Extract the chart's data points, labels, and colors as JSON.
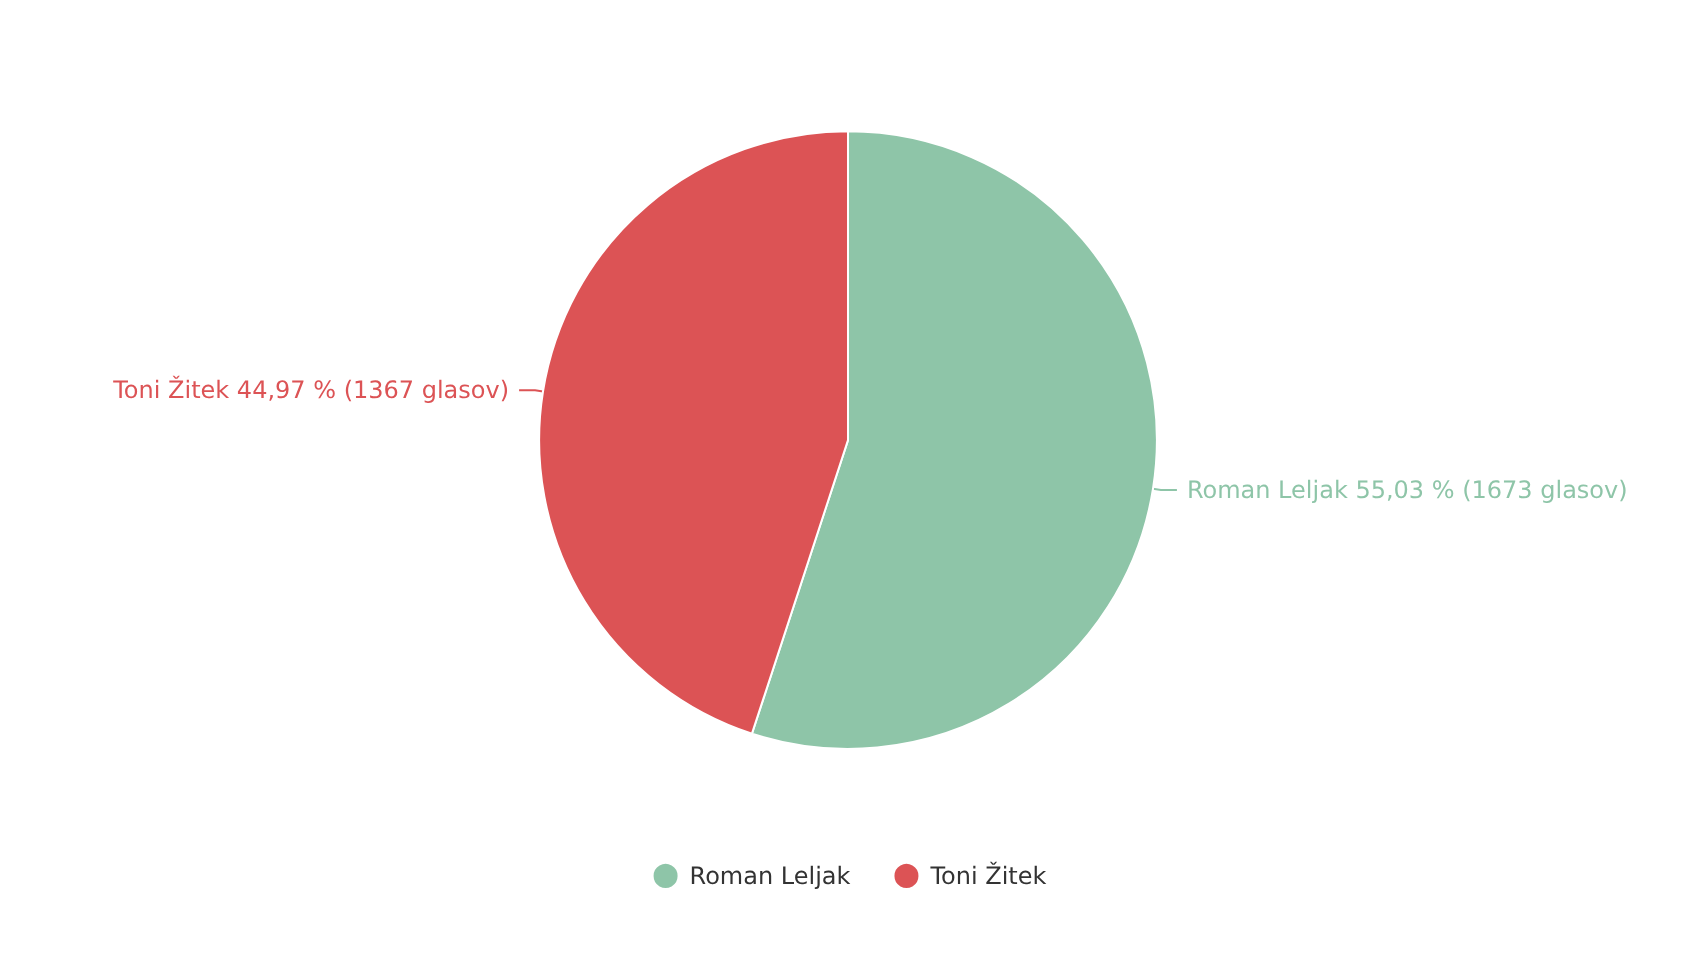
{
  "chart_data": {
    "type": "pie",
    "categories": [
      "Roman Leljak",
      "Toni Žitek"
    ],
    "values": [
      1673,
      1367
    ],
    "colors": [
      "#8ec5a8",
      "#dc5355"
    ],
    "value_labels": [
      "55,03 % (1673 glasov)",
      "44,97 % (1367 glasov)"
    ],
    "legend": "bottom"
  }
}
